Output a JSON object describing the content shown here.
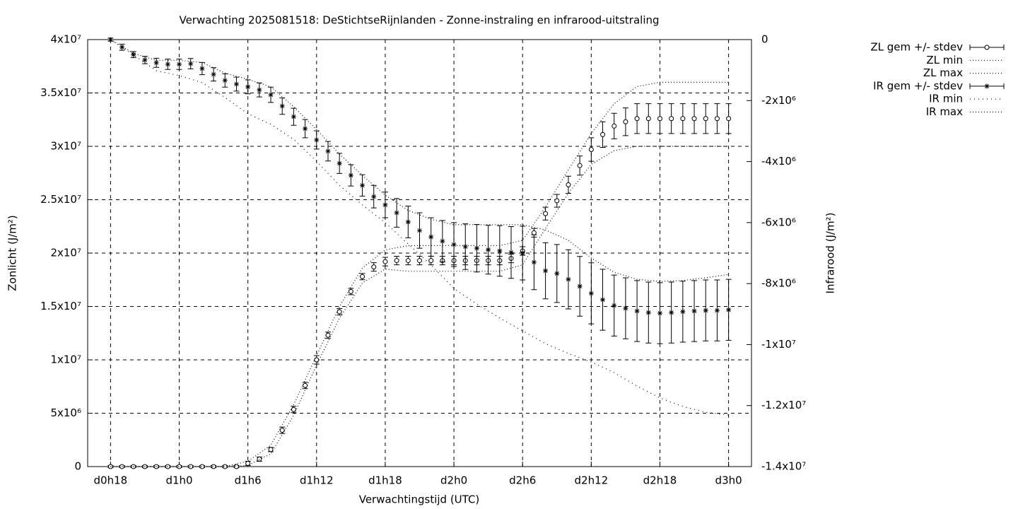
{
  "chart_data": {
    "type": "errorbar",
    "title": "Verwachting 2025081518: DeStichtseRijnlanden - Zonne-instraling en infrarood-uitstraling",
    "xlabel": "Verwachtingstijd (UTC)",
    "ylabel": "Zonlicht (J/m²)",
    "y2label": "Infrarood (J/m²)",
    "grid": true,
    "legend": "outside-right",
    "xlim": [
      16,
      74
    ],
    "xticks": [
      {
        "value": 18,
        "label": "d0h18"
      },
      {
        "value": 24,
        "label": "d1h0"
      },
      {
        "value": 30,
        "label": "d1h6"
      },
      {
        "value": 36,
        "label": "d1h12"
      },
      {
        "value": 42,
        "label": "d1h18"
      },
      {
        "value": 48,
        "label": "d2h0"
      },
      {
        "value": 54,
        "label": "d2h6"
      },
      {
        "value": 60,
        "label": "d2h12"
      },
      {
        "value": 66,
        "label": "d2h18"
      },
      {
        "value": 72,
        "label": "d3h0"
      }
    ],
    "ylim": [
      0,
      40000000.0
    ],
    "yticks": [
      0,
      {
        "value": 5000000.0,
        "label": "5x10⁶"
      },
      {
        "value": 10000000.0,
        "label": "1x10⁷"
      },
      {
        "value": 15000000.0,
        "label": "1.5x10⁷"
      },
      {
        "value": 20000000.0,
        "label": "2x10⁷"
      },
      {
        "value": 25000000.0,
        "label": "2.5x10⁷"
      },
      {
        "value": 30000000.0,
        "label": "3x10⁷"
      },
      {
        "value": 35000000.0,
        "label": "3.5x10⁷"
      },
      {
        "value": 40000000.0,
        "label": "4x10⁷"
      }
    ],
    "y2lim": [
      -14000000.0,
      0
    ],
    "y2ticks": [
      0,
      {
        "value": -2000000.0,
        "label": "-2x10⁶"
      },
      {
        "value": -4000000.0,
        "label": "-4x10⁶"
      },
      {
        "value": -6000000.0,
        "label": "-6x10⁶"
      },
      {
        "value": -8000000.0,
        "label": "-8x10⁶"
      },
      {
        "value": -10000000.0,
        "label": "-1x10⁷"
      },
      {
        "value": -12000000.0,
        "label": "-1.2x10⁷"
      },
      {
        "value": -14000000.0,
        "label": "-1.4x10⁷"
      }
    ],
    "x": [
      18,
      19,
      20,
      21,
      22,
      23,
      24,
      25,
      26,
      27,
      28,
      29,
      30,
      31,
      32,
      33,
      34,
      35,
      36,
      37,
      38,
      39,
      40,
      41,
      42,
      43,
      44,
      45,
      46,
      47,
      48,
      49,
      50,
      51,
      52,
      53,
      54,
      55,
      56,
      57,
      58,
      59,
      60,
      61,
      62,
      63,
      64,
      65,
      66,
      67,
      68,
      69,
      70,
      71,
      72
    ],
    "series": [
      {
        "name": "ZL gem +/- stdev",
        "color": "#000000",
        "marker": "circle",
        "style": "errorbars",
        "values": [
          0,
          0,
          0,
          0,
          0,
          0,
          0,
          0,
          0,
          0,
          0,
          0,
          300000.0,
          700000.0,
          1600000.0,
          3400000.0,
          5350000.0,
          7600000.0,
          10000000.0,
          12300000.0,
          14500000.0,
          16400000.0,
          17800000.0,
          18700000.0,
          19200000.0,
          19300000.0,
          19300000.0,
          19300000.0,
          19300000.0,
          19300000.0,
          19300000.0,
          19300000.0,
          19300000.0,
          19300000.0,
          19300000.0,
          19500000.0,
          20200000.0,
          21900000.0,
          23700000.0,
          24900000.0,
          26400000.0,
          28200000.0,
          29700000.0,
          31100000.0,
          31900000.0,
          32300000.0,
          32600000.0,
          32600000.0,
          32600000.0,
          32600000.0,
          32600000.0,
          32600000.0,
          32600000.0,
          32600000.0,
          32600000.0
        ],
        "errors": [
          100000.0,
          100000.0,
          100000.0,
          100000.0,
          100000.0,
          100000.0,
          100000.0,
          100000.0,
          100000.0,
          100000.0,
          100000.0,
          100000.0,
          200000.0,
          200000.0,
          200000.0,
          300000.0,
          300000.0,
          300000.0,
          400000.0,
          300000.0,
          300000.0,
          300000.0,
          300000.0,
          400000.0,
          400000.0,
          400000.0,
          400000.0,
          400000.0,
          400000.0,
          400000.0,
          400000.0,
          400000.0,
          400000.0,
          400000.0,
          400000.0,
          400000.0,
          400000.0,
          400000.0,
          600000.0,
          600000.0,
          800000.0,
          900000.0,
          1100000.0,
          1200000.0,
          1200000.0,
          1300000.0,
          1400000.0,
          1400000.0,
          1400000.0,
          1400000.0,
          1400000.0,
          1400000.0,
          1400000.0,
          1400000.0,
          1400000.0
        ]
      },
      {
        "name": "ZL min",
        "color": "#000000",
        "style": "line",
        "dash": "1 3",
        "x": [
          18,
          20,
          22,
          24,
          26,
          28,
          30,
          32,
          34,
          36,
          38,
          40,
          42,
          44,
          46,
          48,
          50,
          52,
          54,
          56,
          58,
          60,
          62,
          64,
          66,
          68,
          70,
          72
        ],
        "values": [
          0,
          0,
          0,
          0,
          0,
          0,
          100000.0,
          1200000.0,
          4800000.0,
          9500000.0,
          13900000.0,
          17200000.0,
          18500000.0,
          18300000.0,
          18300000.0,
          18300000.0,
          18300000.0,
          18300000.0,
          18900000.0,
          22300000.0,
          25600000.0,
          28300000.0,
          29600000.0,
          30000000.0,
          30000000.0,
          30000000.0,
          30000000.0,
          30000000.0
        ]
      },
      {
        "name": "ZL max",
        "color": "#000000",
        "style": "line",
        "dash": "1 3",
        "x": [
          18,
          20,
          22,
          24,
          26,
          28,
          30,
          32,
          34,
          36,
          38,
          40,
          42,
          44,
          46,
          48,
          50,
          52,
          54,
          56,
          58,
          60,
          62,
          64,
          66,
          68,
          70,
          72
        ],
        "values": [
          0,
          0,
          0,
          0,
          0,
          0,
          500000.0,
          2000000.0,
          5800000.0,
          10400000.0,
          15000000.0,
          18600000.0,
          20300000.0,
          20700000.0,
          20700000.0,
          20700000.0,
          20700000.0,
          20700000.0,
          21200000.0,
          24300000.0,
          27800000.0,
          31200000.0,
          34000000.0,
          35600000.0,
          36000000.0,
          36000000.0,
          36000000.0,
          36000000.0
        ]
      },
      {
        "name": "IR gem +/- stdev",
        "color": "#000000",
        "marker": "star",
        "style": "errorbars",
        "axis": "y2",
        "values": [
          0,
          -250000.0,
          -490000.0,
          -670000.0,
          -760000.0,
          -810000.0,
          -810000.0,
          -790000.0,
          -950000.0,
          -1140000.0,
          -1340000.0,
          -1460000.0,
          -1550000.0,
          -1650000.0,
          -1810000.0,
          -2180000.0,
          -2530000.0,
          -2920000.0,
          -3290000.0,
          -3660000.0,
          -4060000.0,
          -4450000.0,
          -4780000.0,
          -5150000.0,
          -5420000.0,
          -5680000.0,
          -5980000.0,
          -6260000.0,
          -6470000.0,
          -6610000.0,
          -6720000.0,
          -6790000.0,
          -6840000.0,
          -6890000.0,
          -6930000.0,
          -6980000.0,
          -7000000.0,
          -7300000.0,
          -7580000.0,
          -7670000.0,
          -7860000.0,
          -8090000.0,
          -8320000.0,
          -8530000.0,
          -8720000.0,
          -8810000.0,
          -8900000.0,
          -8950000.0,
          -8970000.0,
          -8950000.0,
          -8920000.0,
          -8900000.0,
          -8880000.0,
          -8880000.0,
          -8860000.0
        ],
        "errors": [
          50000.0,
          100000.0,
          100000.0,
          120000.0,
          150000.0,
          170000.0,
          170000.0,
          170000.0,
          200000.0,
          220000.0,
          220000.0,
          230000.0,
          230000.0,
          230000.0,
          250000.0,
          270000.0,
          280000.0,
          300000.0,
          300000.0,
          320000.0,
          330000.0,
          350000.0,
          350000.0,
          370000.0,
          420000.0,
          470000.0,
          520000.0,
          580000.0,
          630000.0,
          680000.0,
          720000.0,
          750000.0,
          780000.0,
          800000.0,
          830000.0,
          850000.0,
          880000.0,
          900000.0,
          920000.0,
          950000.0,
          970000.0,
          980000.0,
          1000000.0,
          1000000.0,
          1000000.0,
          1000000.0,
          1000000.0,
          1000000.0,
          1000000.0,
          1000000.0,
          1000000.0,
          1000000.0,
          1000000.0,
          1000000.0,
          1000000.0
        ]
      },
      {
        "name": "IR min",
        "color": "#000000",
        "style": "line",
        "dash": "1 5",
        "axis": "y2",
        "x": [
          18,
          20,
          22,
          24,
          26,
          28,
          30,
          32,
          34,
          36,
          38,
          40,
          42,
          44,
          46,
          48,
          50,
          52,
          54,
          56,
          58,
          60,
          62,
          64,
          66,
          68,
          70,
          72
        ],
        "values": [
          0,
          -500000.0,
          -1020000.0,
          -1180000.0,
          -1410000.0,
          -1900000.0,
          -2430000.0,
          -2780000.0,
          -3270000.0,
          -3990000.0,
          -4780000.0,
          -5420000.0,
          -6000000.0,
          -6700000.0,
          -7390000.0,
          -8160000.0,
          -8670000.0,
          -9130000.0,
          -9550000.0,
          -9970000.0,
          -10290000.0,
          -10570000.0,
          -10920000.0,
          -11360000.0,
          -11750000.0,
          -12030000.0,
          -12220000.0,
          -12310000.0
        ]
      },
      {
        "name": "IR max",
        "color": "#000000",
        "style": "line",
        "dash": "1 3",
        "axis": "y2",
        "x": [
          18,
          20,
          22,
          24,
          26,
          28,
          30,
          32,
          34,
          36,
          38,
          40,
          42,
          44,
          46,
          48,
          50,
          52,
          54,
          56,
          58,
          60,
          62,
          64,
          66,
          68,
          70,
          72
        ],
        "values": [
          0,
          -450000.0,
          -680000.0,
          -680000.0,
          -750000.0,
          -1100000.0,
          -1300000.0,
          -1550000.0,
          -2200000.0,
          -2950000.0,
          -3750000.0,
          -4450000.0,
          -5100000.0,
          -5600000.0,
          -5890000.0,
          -6070000.0,
          -6070000.0,
          -6070000.0,
          -6070000.0,
          -6240000.0,
          -6580000.0,
          -7160000.0,
          -7630000.0,
          -7860000.0,
          -7930000.0,
          -7900000.0,
          -7810000.0,
          -7700000.0
        ]
      }
    ]
  }
}
